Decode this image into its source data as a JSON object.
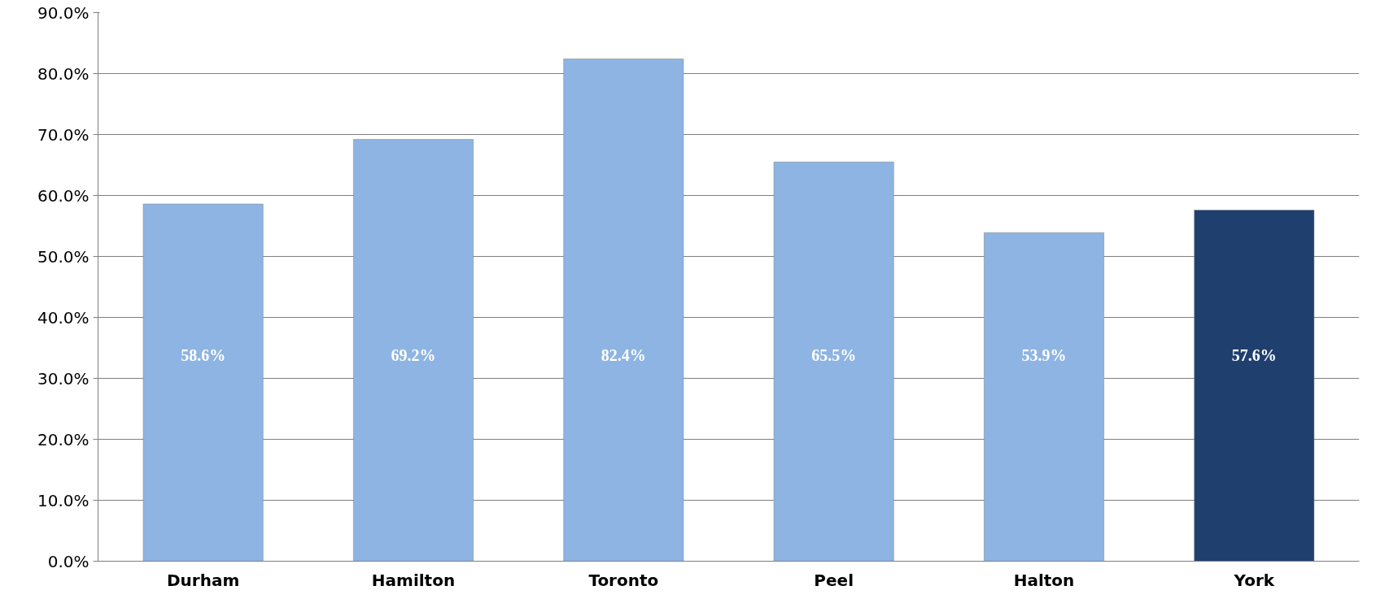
{
  "chart_data": {
    "type": "bar",
    "categories": [
      "Durham",
      "Hamilton",
      "Toronto",
      "Peel",
      "Halton",
      "York"
    ],
    "values": [
      58.6,
      69.2,
      82.4,
      65.5,
      53.9,
      57.6
    ],
    "colors": [
      "#8db4e2",
      "#8db4e2",
      "#8db4e2",
      "#8db4e2",
      "#8db4e2",
      "#1f3f6e"
    ],
    "value_labels": [
      "58.6%",
      "69.2%",
      "82.4%",
      "65.5%",
      "53.9%",
      "57.6%"
    ],
    "ylim": [
      0,
      90
    ],
    "yticks": [
      {
        "value": 0,
        "label": "0.0%"
      },
      {
        "value": 10,
        "label": "10.0%"
      },
      {
        "value": 20,
        "label": "20.0%"
      },
      {
        "value": 30,
        "label": "30.0%"
      },
      {
        "value": 40,
        "label": "40.0%"
      },
      {
        "value": 50,
        "label": "50.0%"
      },
      {
        "value": 60,
        "label": "60.0%"
      },
      {
        "value": 70,
        "label": "70.0%"
      },
      {
        "value": 80,
        "label": "80.0%"
      },
      {
        "value": 90,
        "label": "90.0%"
      }
    ],
    "grid": "y"
  }
}
